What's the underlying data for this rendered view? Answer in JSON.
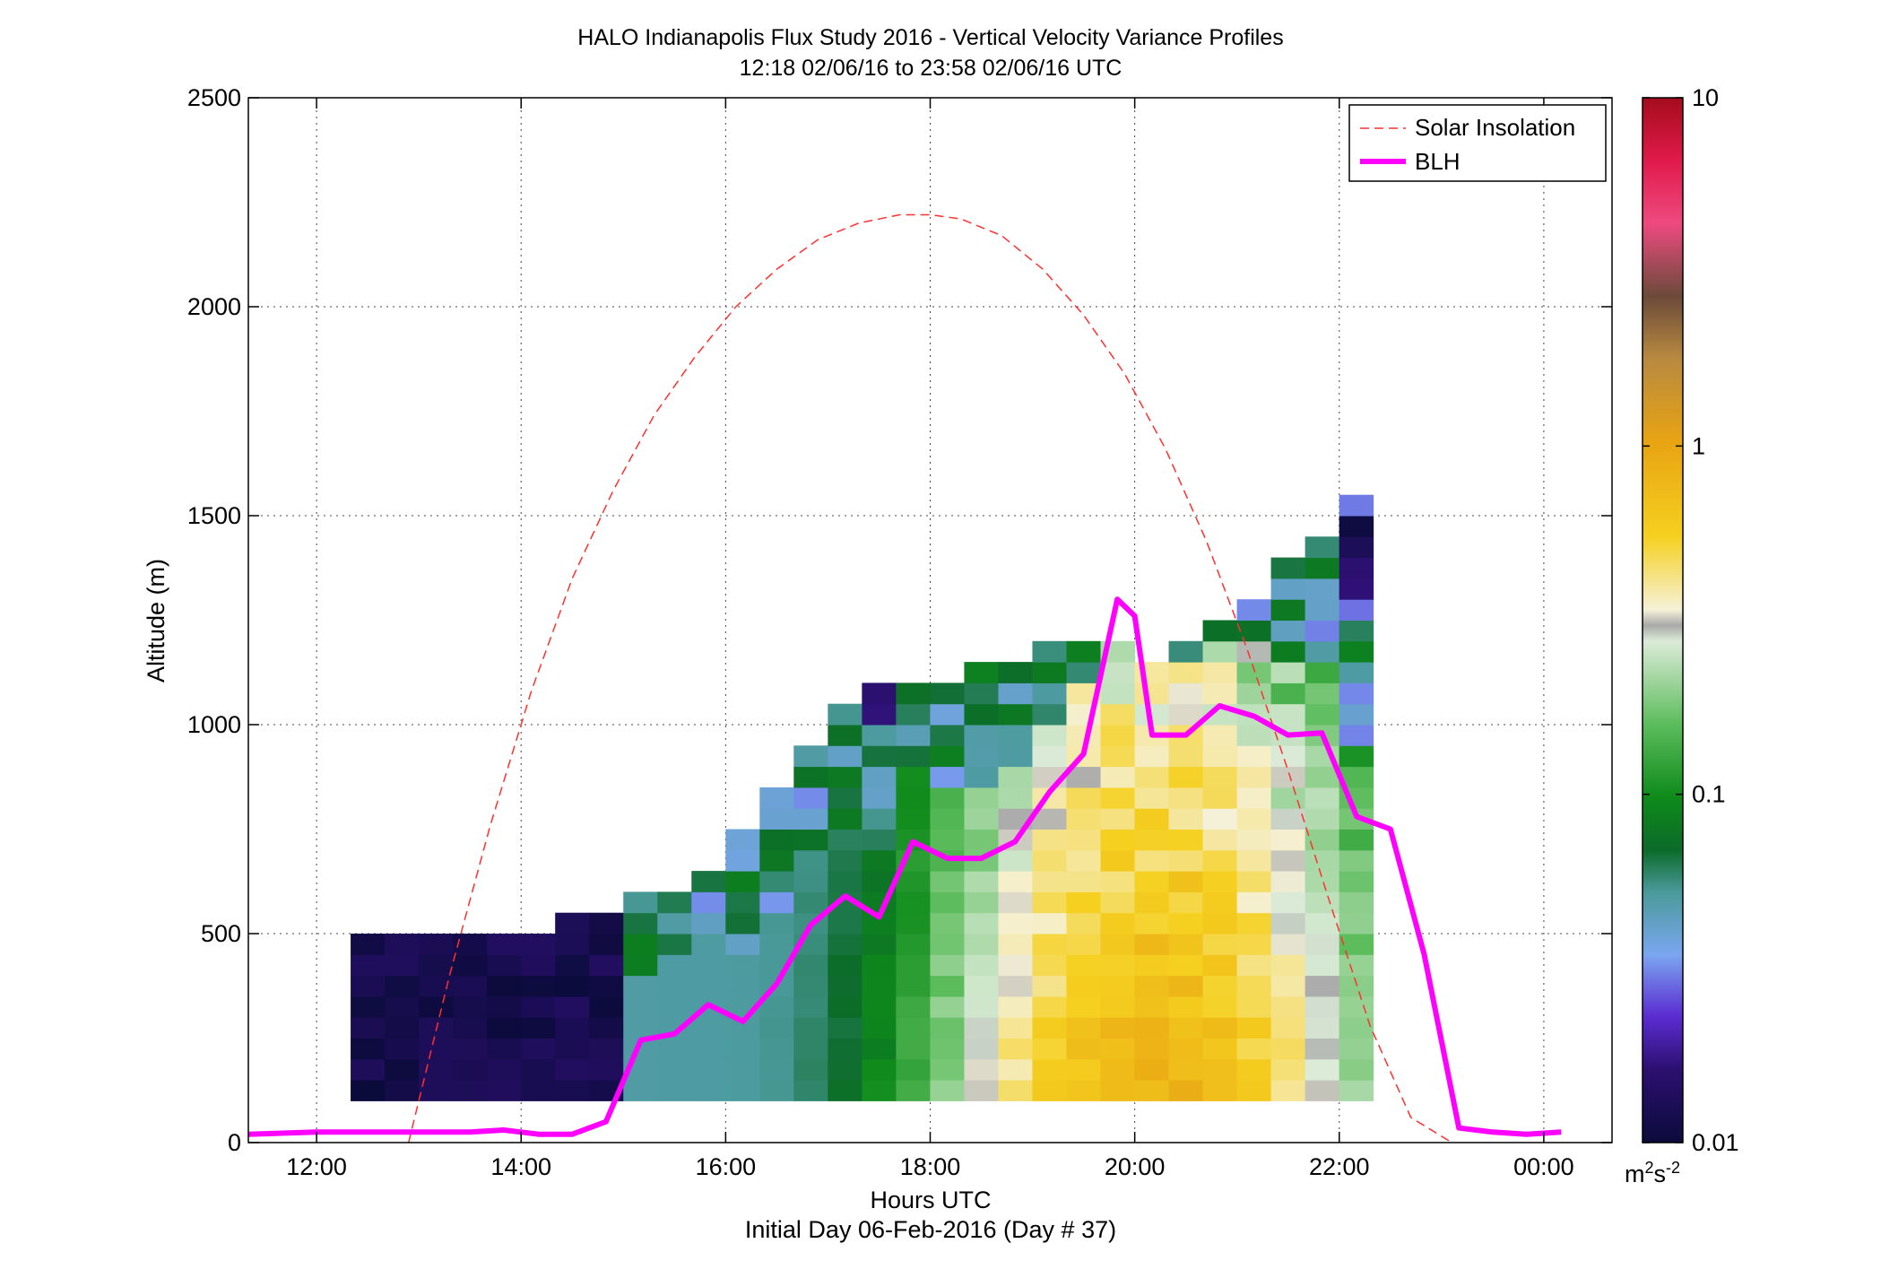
{
  "chart_data": {
    "type": "heatmap",
    "title": "HALO Indianapolis Flux Study 2016 - Vertical Velocity Variance Profiles",
    "subtitle": "12:18 02/06/16 to 23:58 02/06/16  UTC",
    "xlabel": "Hours UTC",
    "xlabel2": "Initial Day 06-Feb-2016 (Day # 37)",
    "ylabel": "Altitude (m)",
    "xlim": [
      11.333,
      24.667
    ],
    "ylim": [
      0,
      2500
    ],
    "x_ticks": [
      12,
      14,
      16,
      18,
      20,
      22,
      24
    ],
    "x_tick_labels": [
      "12:00",
      "14:00",
      "16:00",
      "18:00",
      "20:00",
      "22:00",
      "00:00"
    ],
    "y_ticks": [
      0,
      500,
      1000,
      1500,
      2000,
      2500
    ],
    "y_tick_labels": [
      "0",
      "500",
      "1000",
      "1500",
      "2000",
      "2500"
    ],
    "grid": true,
    "legend_position": "top-right",
    "colorbar": {
      "scale": "log",
      "min": 0.01,
      "max": 10,
      "ticks": [
        0.01,
        0.1,
        1,
        10
      ],
      "tick_labels": [
        "0.01",
        "0.1",
        "1",
        "10"
      ],
      "unit_base": "m",
      "unit_exp1": "2",
      "unit_mid": "s",
      "unit_exp2": "-2"
    },
    "grid_cells": {
      "x_start": 12.333,
      "bin_hours": 0.3333,
      "columns": 30,
      "z_start": 100,
      "bin_m": 50,
      "levels": 37
    },
    "series": [
      {
        "name": "Solar Insolation",
        "style": "dashed",
        "color": "#ff3030",
        "x": [
          12.9,
          13.3,
          13.7,
          14.1,
          14.5,
          14.9,
          15.3,
          15.7,
          16.1,
          16.5,
          16.9,
          17.3,
          17.7,
          18.0,
          18.3,
          18.7,
          19.1,
          19.5,
          19.9,
          20.3,
          20.7,
          21.1,
          21.5,
          21.9,
          22.3,
          22.7,
          23.1
        ],
        "y": [
          0,
          400,
          760,
          1080,
          1350,
          1560,
          1740,
          1880,
          2000,
          2090,
          2160,
          2200,
          2220,
          2220,
          2210,
          2170,
          2090,
          1980,
          1840,
          1660,
          1440,
          1180,
          890,
          580,
          280,
          60,
          0
        ]
      },
      {
        "name": "BLH",
        "style": "solid",
        "color": "#ff00ff",
        "x": [
          11.333,
          12.0,
          12.5,
          13.0,
          13.5,
          13.83,
          14.0,
          14.17,
          14.5,
          14.83,
          15.17,
          15.5,
          15.83,
          16.17,
          16.5,
          16.83,
          17.17,
          17.5,
          17.83,
          18.17,
          18.5,
          18.83,
          19.17,
          19.5,
          19.83,
          20.0,
          20.17,
          20.5,
          20.83,
          21.17,
          21.5,
          21.83,
          22.17,
          22.5,
          22.83,
          23.17,
          23.5,
          23.83,
          24.17
        ],
        "y": [
          20,
          25,
          25,
          25,
          25,
          30,
          25,
          20,
          20,
          50,
          245,
          260,
          330,
          290,
          380,
          520,
          590,
          540,
          720,
          680,
          680,
          720,
          840,
          930,
          1300,
          1260,
          975,
          975,
          1045,
          1020,
          975,
          980,
          780,
          750,
          450,
          35,
          25,
          20,
          25
        ]
      }
    ]
  },
  "colors": {
    "blh": "#ff00ff",
    "solar": "#ff3030",
    "background": "#ffffff"
  }
}
